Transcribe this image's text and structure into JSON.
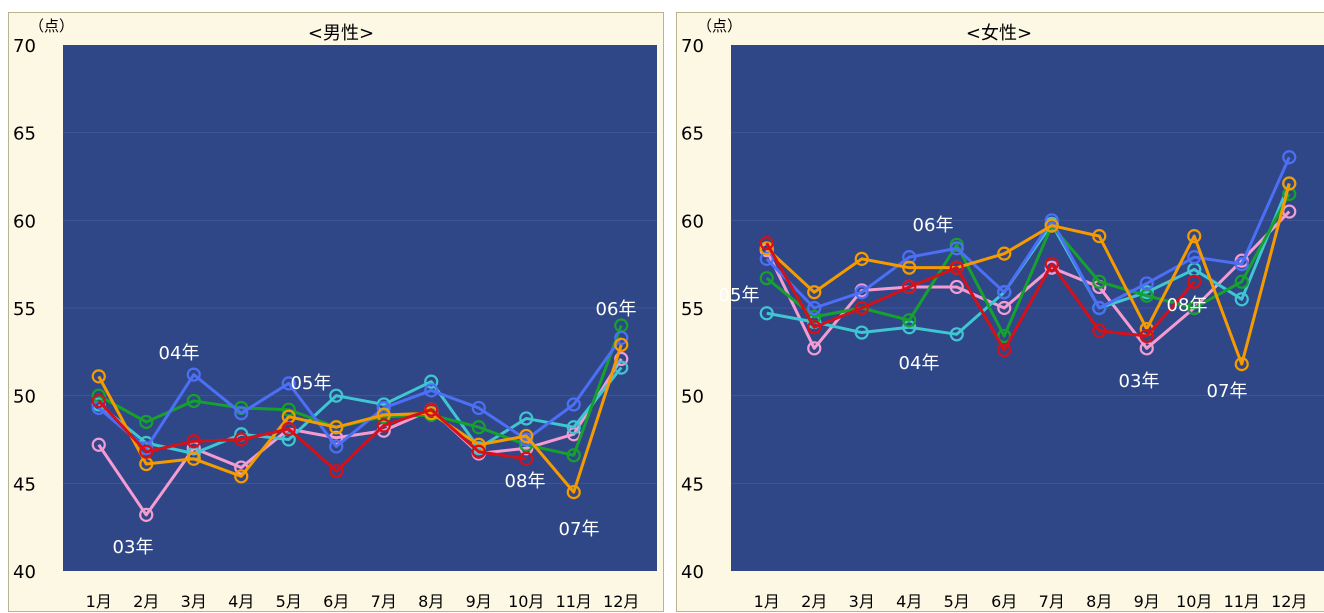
{
  "chart_data": [
    {
      "type": "line",
      "title": "<男性>",
      "unit_label": "（点）",
      "categories": [
        "1月",
        "2月",
        "3月",
        "4月",
        "5月",
        "6月",
        "7月",
        "8月",
        "9月",
        "10月",
        "11月",
        "12月"
      ],
      "ylim": [
        40,
        70
      ],
      "yticks": [
        "40",
        "45",
        "50",
        "55",
        "60",
        "65",
        "70"
      ],
      "grid": true,
      "series": [
        {
          "name": "03年",
          "color": "#f49bd2",
          "values": [
            47.2,
            43.2,
            47.0,
            45.9,
            48.1,
            47.6,
            48.0,
            49.2,
            46.7,
            47.0,
            47.8,
            52.1
          ]
        },
        {
          "name": "04年",
          "color": "#3fc6d2",
          "values": [
            49.5,
            47.3,
            46.7,
            47.8,
            47.5,
            50.0,
            49.5,
            50.8,
            47.0,
            48.7,
            48.2,
            51.6
          ]
        },
        {
          "name": "05年",
          "color": "#16a02e",
          "values": [
            50.0,
            48.5,
            49.7,
            49.3,
            49.2,
            48.2,
            48.8,
            48.9,
            48.2,
            47.2,
            46.6,
            54.0
          ]
        },
        {
          "name": "06年",
          "color": "#4c6ff5",
          "values": [
            49.3,
            47.0,
            51.2,
            49.0,
            50.7,
            47.1,
            49.3,
            50.3,
            49.3,
            47.5,
            49.5,
            53.3
          ]
        },
        {
          "name": "07年",
          "color": "#f59b00",
          "values": [
            51.1,
            46.1,
            46.4,
            45.4,
            48.8,
            48.2,
            48.9,
            49.0,
            47.2,
            47.7,
            44.5,
            52.9
          ]
        },
        {
          "name": "08年",
          "color": "#d4101a",
          "values": [
            49.7,
            46.8,
            47.4,
            47.5,
            48.1,
            45.7,
            48.3,
            49.2,
            46.8,
            46.4,
            null,
            null
          ]
        }
      ],
      "annotations": [
        "03年",
        "04年",
        "05年",
        "06年",
        "07年",
        "08年"
      ]
    },
    {
      "type": "line",
      "title": "<女性>",
      "unit_label": "（点）",
      "categories": [
        "1月",
        "2月",
        "3月",
        "4月",
        "5月",
        "6月",
        "7月",
        "8月",
        "9月",
        "10月",
        "11月",
        "12月"
      ],
      "ylim": [
        40,
        70
      ],
      "yticks": [
        "40",
        "45",
        "50",
        "55",
        "60",
        "65",
        "70"
      ],
      "grid": true,
      "series": [
        {
          "name": "03年",
          "color": "#f49bd2",
          "values": [
            58.3,
            52.7,
            56.0,
            56.2,
            56.2,
            55.0,
            57.3,
            56.2,
            52.7,
            55.0,
            57.7,
            60.5
          ]
        },
        {
          "name": "04年",
          "color": "#3fc6d2",
          "values": [
            54.7,
            54.2,
            53.6,
            53.9,
            53.5,
            55.9,
            59.8,
            55.0,
            55.9,
            57.2,
            55.5,
            62.1
          ]
        },
        {
          "name": "05年",
          "color": "#16a02e",
          "values": [
            56.7,
            54.5,
            55.0,
            54.3,
            58.6,
            53.4,
            59.7,
            56.5,
            55.7,
            55.0,
            56.5,
            61.5
          ]
        },
        {
          "name": "06年",
          "color": "#4c6ff5",
          "values": [
            57.8,
            55.0,
            55.9,
            57.9,
            58.4,
            55.9,
            60.0,
            55.0,
            56.4,
            57.9,
            57.5,
            63.6
          ]
        },
        {
          "name": "07年",
          "color": "#f59b00",
          "values": [
            58.4,
            55.9,
            57.8,
            57.3,
            57.3,
            58.1,
            59.7,
            59.1,
            53.8,
            59.1,
            51.8,
            62.1
          ]
        },
        {
          "name": "08年",
          "color": "#d4101a",
          "values": [
            58.7,
            53.9,
            55.0,
            56.2,
            57.3,
            52.6,
            57.5,
            53.7,
            53.4,
            56.5,
            null,
            null
          ]
        }
      ],
      "annotations": [
        "05年",
        "06年",
        "04年",
        "08年",
        "03年",
        "07年"
      ]
    }
  ]
}
